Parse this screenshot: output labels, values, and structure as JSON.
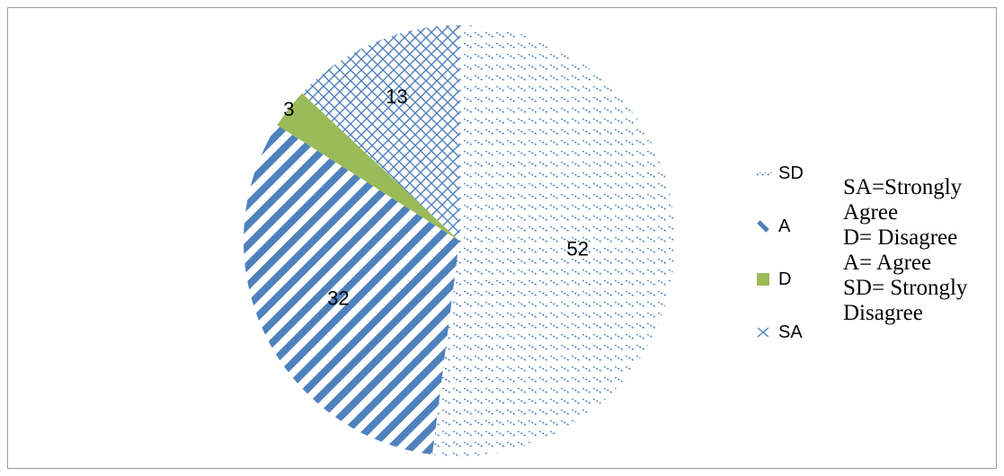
{
  "chart_data": {
    "type": "pie",
    "categories": [
      "SD",
      "A",
      "D",
      "SA"
    ],
    "values": [
      52,
      32,
      3,
      13
    ],
    "data_labels": [
      "52",
      "32",
      "3",
      "13"
    ],
    "title": "",
    "legend": "right",
    "colors": {
      "SD": "#4f81bd",
      "A": "#4f81bd",
      "D": "#9bbb59",
      "SA": "#4f81bd"
    },
    "patterns": {
      "SD": "dotted-diagonal",
      "A": "wide-diagonal-stripes",
      "D": "solid",
      "SA": "crosshatch"
    }
  },
  "legend": {
    "items": [
      {
        "label": "SD",
        "icon": "dotted-pattern-icon"
      },
      {
        "label": "A",
        "icon": "stripe-pattern-icon"
      },
      {
        "label": "D",
        "icon": "solid-green-icon"
      },
      {
        "label": "SA",
        "icon": "crosshatch-pattern-icon"
      }
    ]
  },
  "notes": {
    "lines": [
      "SA=Strongly",
      "Agree",
      "D= Disagree",
      "A= Agree",
      "SD= Strongly",
      "Disagree"
    ]
  }
}
